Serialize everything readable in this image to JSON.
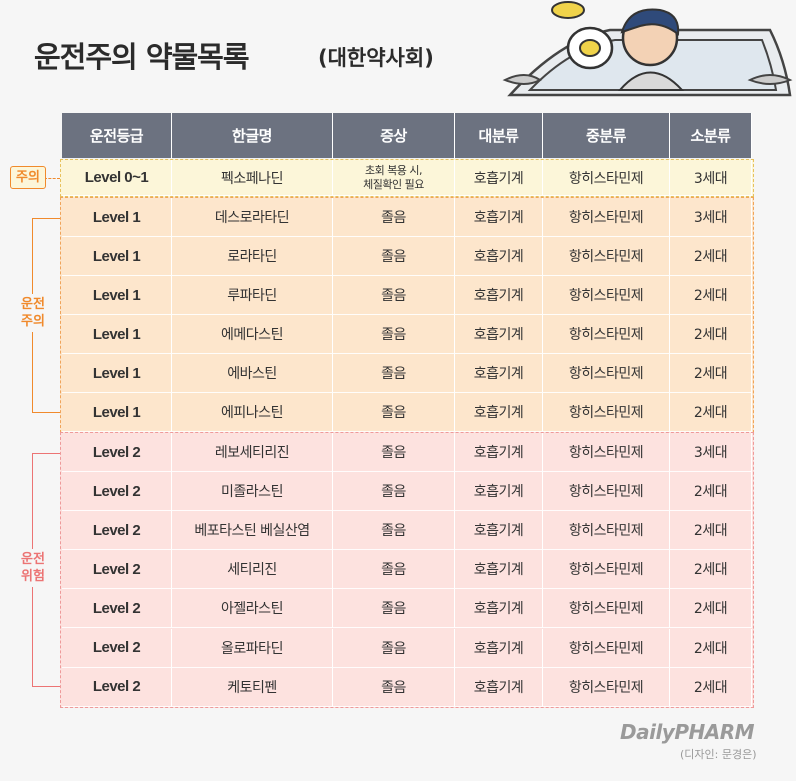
{
  "header": {
    "title": "운전주의 약물목록",
    "subtitle": "(대한약사회)"
  },
  "table": {
    "columns": [
      "운전등급",
      "한글명",
      "증상",
      "대분류",
      "중분류",
      "소분류"
    ]
  },
  "groups": [
    {
      "label": "주의",
      "rows": [
        [
          "Level 0~1",
          "펙소페나딘",
          "초회 복용 시,\n체질확인 필요",
          "호흡기계",
          "항히스타민제",
          "3세대"
        ]
      ]
    },
    {
      "label": "운전\n주의",
      "rows": [
        [
          "Level 1",
          "데스로라타딘",
          "졸음",
          "호흡기계",
          "항히스타민제",
          "3세대"
        ],
        [
          "Level 1",
          "로라타딘",
          "졸음",
          "호흡기계",
          "항히스타민제",
          "2세대"
        ],
        [
          "Level 1",
          "루파타딘",
          "졸음",
          "호흡기계",
          "항히스타민제",
          "2세대"
        ],
        [
          "Level 1",
          "에메다스틴",
          "졸음",
          "호흡기계",
          "항히스타민제",
          "2세대"
        ],
        [
          "Level 1",
          "에바스틴",
          "졸음",
          "호흡기계",
          "항히스타민제",
          "2세대"
        ],
        [
          "Level 1",
          "에피나스틴",
          "졸음",
          "호흡기계",
          "항히스타민제",
          "2세대"
        ]
      ]
    },
    {
      "label": "운전\n위험",
      "rows": [
        [
          "Level 2",
          "레보세티리진",
          "졸음",
          "호흡기계",
          "항히스타민제",
          "3세대"
        ],
        [
          "Level 2",
          "미졸라스틴",
          "졸음",
          "호흡기계",
          "항히스타민제",
          "2세대"
        ],
        [
          "Level 2",
          "베포타스틴 베실산염",
          "졸음",
          "호흡기계",
          "항히스타민제",
          "2세대"
        ],
        [
          "Level 2",
          "세티리진",
          "졸음",
          "호흡기계",
          "항히스타민제",
          "2세대"
        ],
        [
          "Level 2",
          "아젤라스틴",
          "졸음",
          "호흡기계",
          "항히스타민제",
          "2세대"
        ],
        [
          "Level 2",
          "올로파타딘",
          "졸음",
          "호흡기계",
          "항히스타민제",
          "2세대"
        ],
        [
          "Level 2",
          "케토티펜",
          "졸음",
          "호흡기계",
          "항히스타민제",
          "2세대"
        ]
      ]
    }
  ],
  "footer": {
    "logo": "DailyPHARM",
    "credit": "(디자인: 문경은)"
  }
}
